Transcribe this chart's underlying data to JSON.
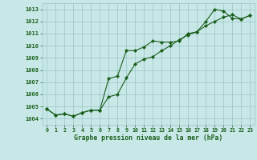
{
  "title": "Graphe pression niveau de la mer (hPa)",
  "bg_color": "#c8e8e8",
  "plot_bg_color": "#c8e8e8",
  "grid_color": "#99c4c4",
  "line_color": "#1a5e1a",
  "marker_color": "#1a5e1a",
  "x_ticks": [
    0,
    1,
    2,
    3,
    4,
    5,
    6,
    7,
    8,
    9,
    10,
    11,
    12,
    13,
    14,
    15,
    16,
    17,
    18,
    19,
    20,
    21,
    22,
    23
  ],
  "xlim": [
    -0.5,
    23.5
  ],
  "ylim": [
    1003.5,
    1013.5
  ],
  "yticks": [
    1004,
    1005,
    1006,
    1007,
    1008,
    1009,
    1010,
    1011,
    1012,
    1013
  ],
  "line1_x": [
    0,
    1,
    2,
    3,
    4,
    5,
    6,
    7,
    8,
    9,
    10,
    11,
    12,
    13,
    14,
    15,
    16,
    17,
    18,
    19,
    20,
    21,
    22,
    23
  ],
  "line1_y": [
    1004.8,
    1004.3,
    1004.4,
    1004.2,
    1004.5,
    1004.7,
    1004.7,
    1007.3,
    1007.5,
    1009.6,
    1009.6,
    1009.9,
    1010.4,
    1010.3,
    1010.3,
    1010.4,
    1011.0,
    1011.15,
    1012.0,
    1013.0,
    1012.85,
    1012.25,
    1012.2,
    1012.5
  ],
  "line2_x": [
    0,
    1,
    2,
    3,
    4,
    5,
    6,
    7,
    8,
    9,
    10,
    11,
    12,
    13,
    14,
    15,
    16,
    17,
    18,
    19,
    20,
    21,
    22,
    23
  ],
  "line2_y": [
    1004.8,
    1004.3,
    1004.4,
    1004.2,
    1004.5,
    1004.7,
    1004.7,
    1005.8,
    1006.0,
    1007.35,
    1008.5,
    1008.9,
    1009.1,
    1009.6,
    1010.0,
    1010.5,
    1010.9,
    1011.15,
    1011.65,
    1012.0,
    1012.35,
    1012.55,
    1012.2,
    1012.5
  ]
}
